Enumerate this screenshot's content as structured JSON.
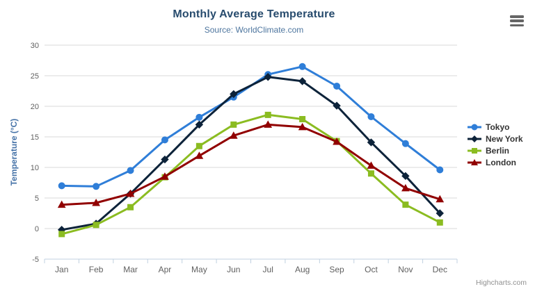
{
  "chart_data": {
    "type": "line",
    "title": "Monthly Average Temperature",
    "subtitle": "Source: WorldClimate.com",
    "categories": [
      "Jan",
      "Feb",
      "Mar",
      "Apr",
      "May",
      "Jun",
      "Jul",
      "Aug",
      "Sep",
      "Oct",
      "Nov",
      "Dec"
    ],
    "xlabel": "",
    "ylabel": "Temperature (°C)",
    "ylim": [
      -5,
      30
    ],
    "ytick_interval": 5,
    "grid": true,
    "legend_position": "right",
    "series": [
      {
        "name": "Tokyo",
        "color": "#2f7ed8",
        "marker": "circle",
        "values": [
          7.0,
          6.9,
          9.5,
          14.5,
          18.2,
          21.5,
          25.2,
          26.5,
          23.3,
          18.3,
          13.9,
          9.6
        ]
      },
      {
        "name": "New York",
        "color": "#0d233a",
        "marker": "diamond",
        "values": [
          -0.2,
          0.8,
          5.7,
          11.3,
          17.0,
          22.0,
          24.8,
          24.1,
          20.1,
          14.1,
          8.6,
          2.5
        ]
      },
      {
        "name": "Berlin",
        "color": "#8bbc21",
        "marker": "square",
        "values": [
          -0.9,
          0.6,
          3.5,
          8.4,
          13.5,
          17.0,
          18.6,
          17.9,
          14.3,
          9.0,
          3.9,
          1.0
        ]
      },
      {
        "name": "London",
        "color": "#910000",
        "marker": "triangle",
        "values": [
          3.9,
          4.2,
          5.7,
          8.5,
          11.9,
          15.2,
          17.0,
          16.6,
          14.2,
          10.3,
          6.6,
          4.8
        ]
      }
    ]
  },
  "credits": "Highcharts.com",
  "colors": {
    "title": "#274b6d",
    "subtitle": "#4d759e",
    "axis_title": "#4572a7",
    "tick_label": "#606060",
    "gridline": "#d8d8d8",
    "axis_line": "#c0d0e0",
    "legend_text": "#333333",
    "credits": "#909090",
    "export_icon": "#666666"
  }
}
